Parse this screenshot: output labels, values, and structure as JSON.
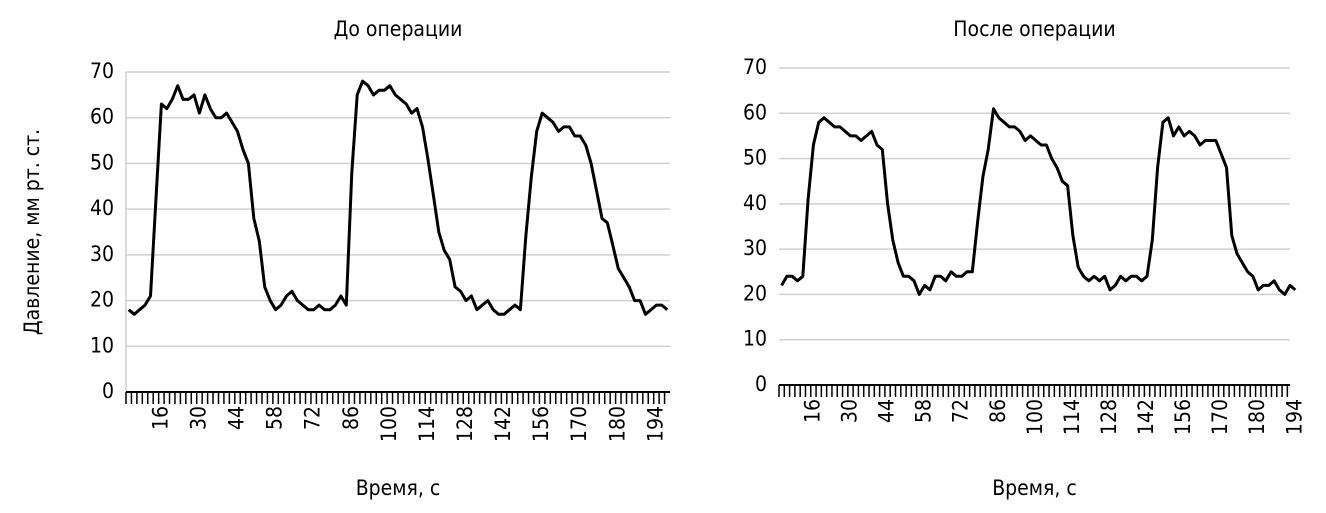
{
  "chart_data": [
    {
      "type": "line",
      "title": "До операции",
      "ylabel": "Давление, мм рт. ст.",
      "xlabel": "Время, с",
      "categories": [
        null,
        null,
        null,
        null,
        null,
        null,
        "16",
        null,
        null,
        null,
        null,
        null,
        null,
        "30",
        null,
        null,
        null,
        null,
        null,
        null,
        "44",
        null,
        null,
        null,
        null,
        null,
        null,
        "58",
        null,
        null,
        null,
        null,
        null,
        null,
        "72",
        null,
        null,
        null,
        null,
        null,
        null,
        "86",
        null,
        null,
        null,
        null,
        null,
        null,
        "100",
        null,
        null,
        null,
        null,
        null,
        null,
        "114",
        null,
        null,
        null,
        null,
        null,
        null,
        "128",
        null,
        null,
        null,
        null,
        null,
        null,
        "142",
        null,
        null,
        null,
        null,
        null,
        null,
        "156",
        null,
        null,
        null,
        null,
        null,
        null,
        "170",
        null,
        null,
        null,
        null,
        null,
        null,
        "180",
        null,
        null,
        null,
        null,
        null,
        null,
        "194",
        null,
        null
      ],
      "values": [
        18,
        17,
        18,
        19,
        21,
        42,
        63,
        62,
        64,
        67,
        64,
        64,
        65,
        61,
        65,
        62,
        60,
        60,
        61,
        59,
        57,
        53,
        50,
        38,
        33,
        23,
        20,
        18,
        19,
        21,
        22,
        20,
        19,
        18,
        18,
        19,
        18,
        18,
        19,
        21,
        19,
        48,
        65,
        68,
        67,
        65,
        66,
        66,
        67,
        65,
        64,
        63,
        61,
        62,
        58,
        51,
        43,
        35,
        31,
        29,
        23,
        22,
        20,
        21,
        18,
        19,
        20,
        18,
        17,
        17,
        18,
        19,
        18,
        34,
        47,
        57,
        61,
        60,
        59,
        57,
        58,
        58,
        56,
        56,
        54,
        50,
        44,
        38,
        37,
        32,
        27,
        25,
        23,
        20,
        20,
        17,
        18,
        19,
        19,
        18
      ],
      "color": "#000000",
      "ylim": [
        0,
        70
      ],
      "yticks": [
        0,
        10,
        20,
        30,
        40,
        50,
        60,
        70
      ],
      "grid": true
    },
    {
      "type": "line",
      "title": "После операции",
      "xlabel": "Время, с",
      "categories": [
        null,
        null,
        null,
        null,
        null,
        null,
        "16",
        null,
        null,
        null,
        null,
        null,
        null,
        "30",
        null,
        null,
        null,
        null,
        null,
        null,
        "44",
        null,
        null,
        null,
        null,
        null,
        null,
        "58",
        null,
        null,
        null,
        null,
        null,
        null,
        "72",
        null,
        null,
        null,
        null,
        null,
        null,
        "86",
        null,
        null,
        null,
        null,
        null,
        null,
        "100",
        null,
        null,
        null,
        null,
        null,
        null,
        "114",
        null,
        null,
        null,
        null,
        null,
        null,
        "128",
        null,
        null,
        null,
        null,
        null,
        null,
        "142",
        null,
        null,
        null,
        null,
        null,
        null,
        "156",
        null,
        null,
        null,
        null,
        null,
        null,
        "170",
        null,
        null,
        null,
        null,
        null,
        null,
        "180",
        null,
        null,
        null,
        null,
        null,
        null,
        "194"
      ],
      "values": [
        22,
        24,
        24,
        23,
        24,
        41,
        53,
        58,
        59,
        58,
        57,
        57,
        56,
        55,
        55,
        54,
        55,
        56,
        53,
        52,
        40,
        32,
        27,
        24,
        24,
        23,
        20,
        22,
        21,
        24,
        24,
        23,
        25,
        24,
        24,
        25,
        25,
        36,
        46,
        52,
        61,
        59,
        58,
        57,
        57,
        56,
        54,
        55,
        54,
        53,
        53,
        50,
        48,
        45,
        44,
        33,
        26,
        24,
        23,
        24,
        23,
        24,
        21,
        22,
        24,
        23,
        24,
        24,
        23,
        24,
        32,
        48,
        58,
        59,
        55,
        57,
        55,
        56,
        55,
        53,
        54,
        54,
        54,
        51,
        48,
        33,
        29,
        27,
        25,
        24,
        21,
        22,
        22,
        23,
        21,
        20,
        22,
        21
      ],
      "color": "#000000",
      "ylim": [
        0,
        70
      ],
      "yticks": [
        0,
        10,
        20,
        30,
        40,
        50,
        60,
        70
      ],
      "grid": true
    }
  ]
}
